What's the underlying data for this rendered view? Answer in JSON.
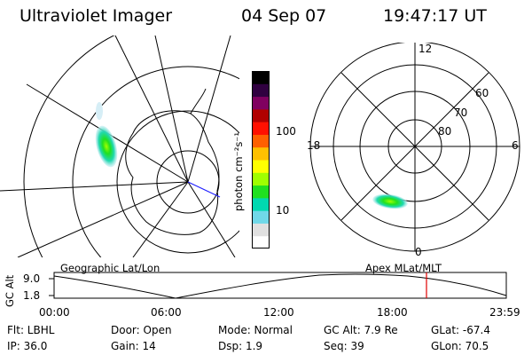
{
  "header": {
    "instrument": "Ultraviolet Imager",
    "date": "04 Sep 07",
    "time": "19:47:17 UT"
  },
  "colorbar": {
    "unit_label": "photon cm⁻²s⁻¹",
    "ticks": [
      "100",
      "10"
    ],
    "colors": [
      "#ffffff",
      "#e0e0e0",
      "#70d8e8",
      "#00d8b0",
      "#20e020",
      "#a0ff00",
      "#ffff00",
      "#ffc000",
      "#ff6000",
      "#ff1000",
      "#b00000",
      "#800060",
      "#300040",
      "#000000"
    ]
  },
  "left_map": {
    "caption": "Geographic Lat/Lon"
  },
  "right_map": {
    "caption": "Apex  MLat/MLT",
    "mlt_labels": {
      "top": "12",
      "bottom": "0",
      "left": "18",
      "right": "6"
    },
    "lat_labels": [
      "60",
      "70",
      "80"
    ]
  },
  "altitude_plot": {
    "ylabel": "GC Alt",
    "yticks": [
      "9.0",
      "1.8"
    ],
    "xticks": [
      "00:00",
      "06:00",
      "12:00",
      "18:00",
      "23:59"
    ],
    "marker_color": "#e00000"
  },
  "status": {
    "flt": "Flt: LBHL",
    "ip": "IP: 36.0",
    "door": "Door: Open",
    "gain": "Gain: 14",
    "mode": "Mode: Normal",
    "dsp": "Dsp:    1.9",
    "gcalt": "GC Alt: 7.9 Re",
    "seq": "Seq: 39",
    "glat": "GLat: -67.4",
    "glon": "GLon:  70.5"
  }
}
